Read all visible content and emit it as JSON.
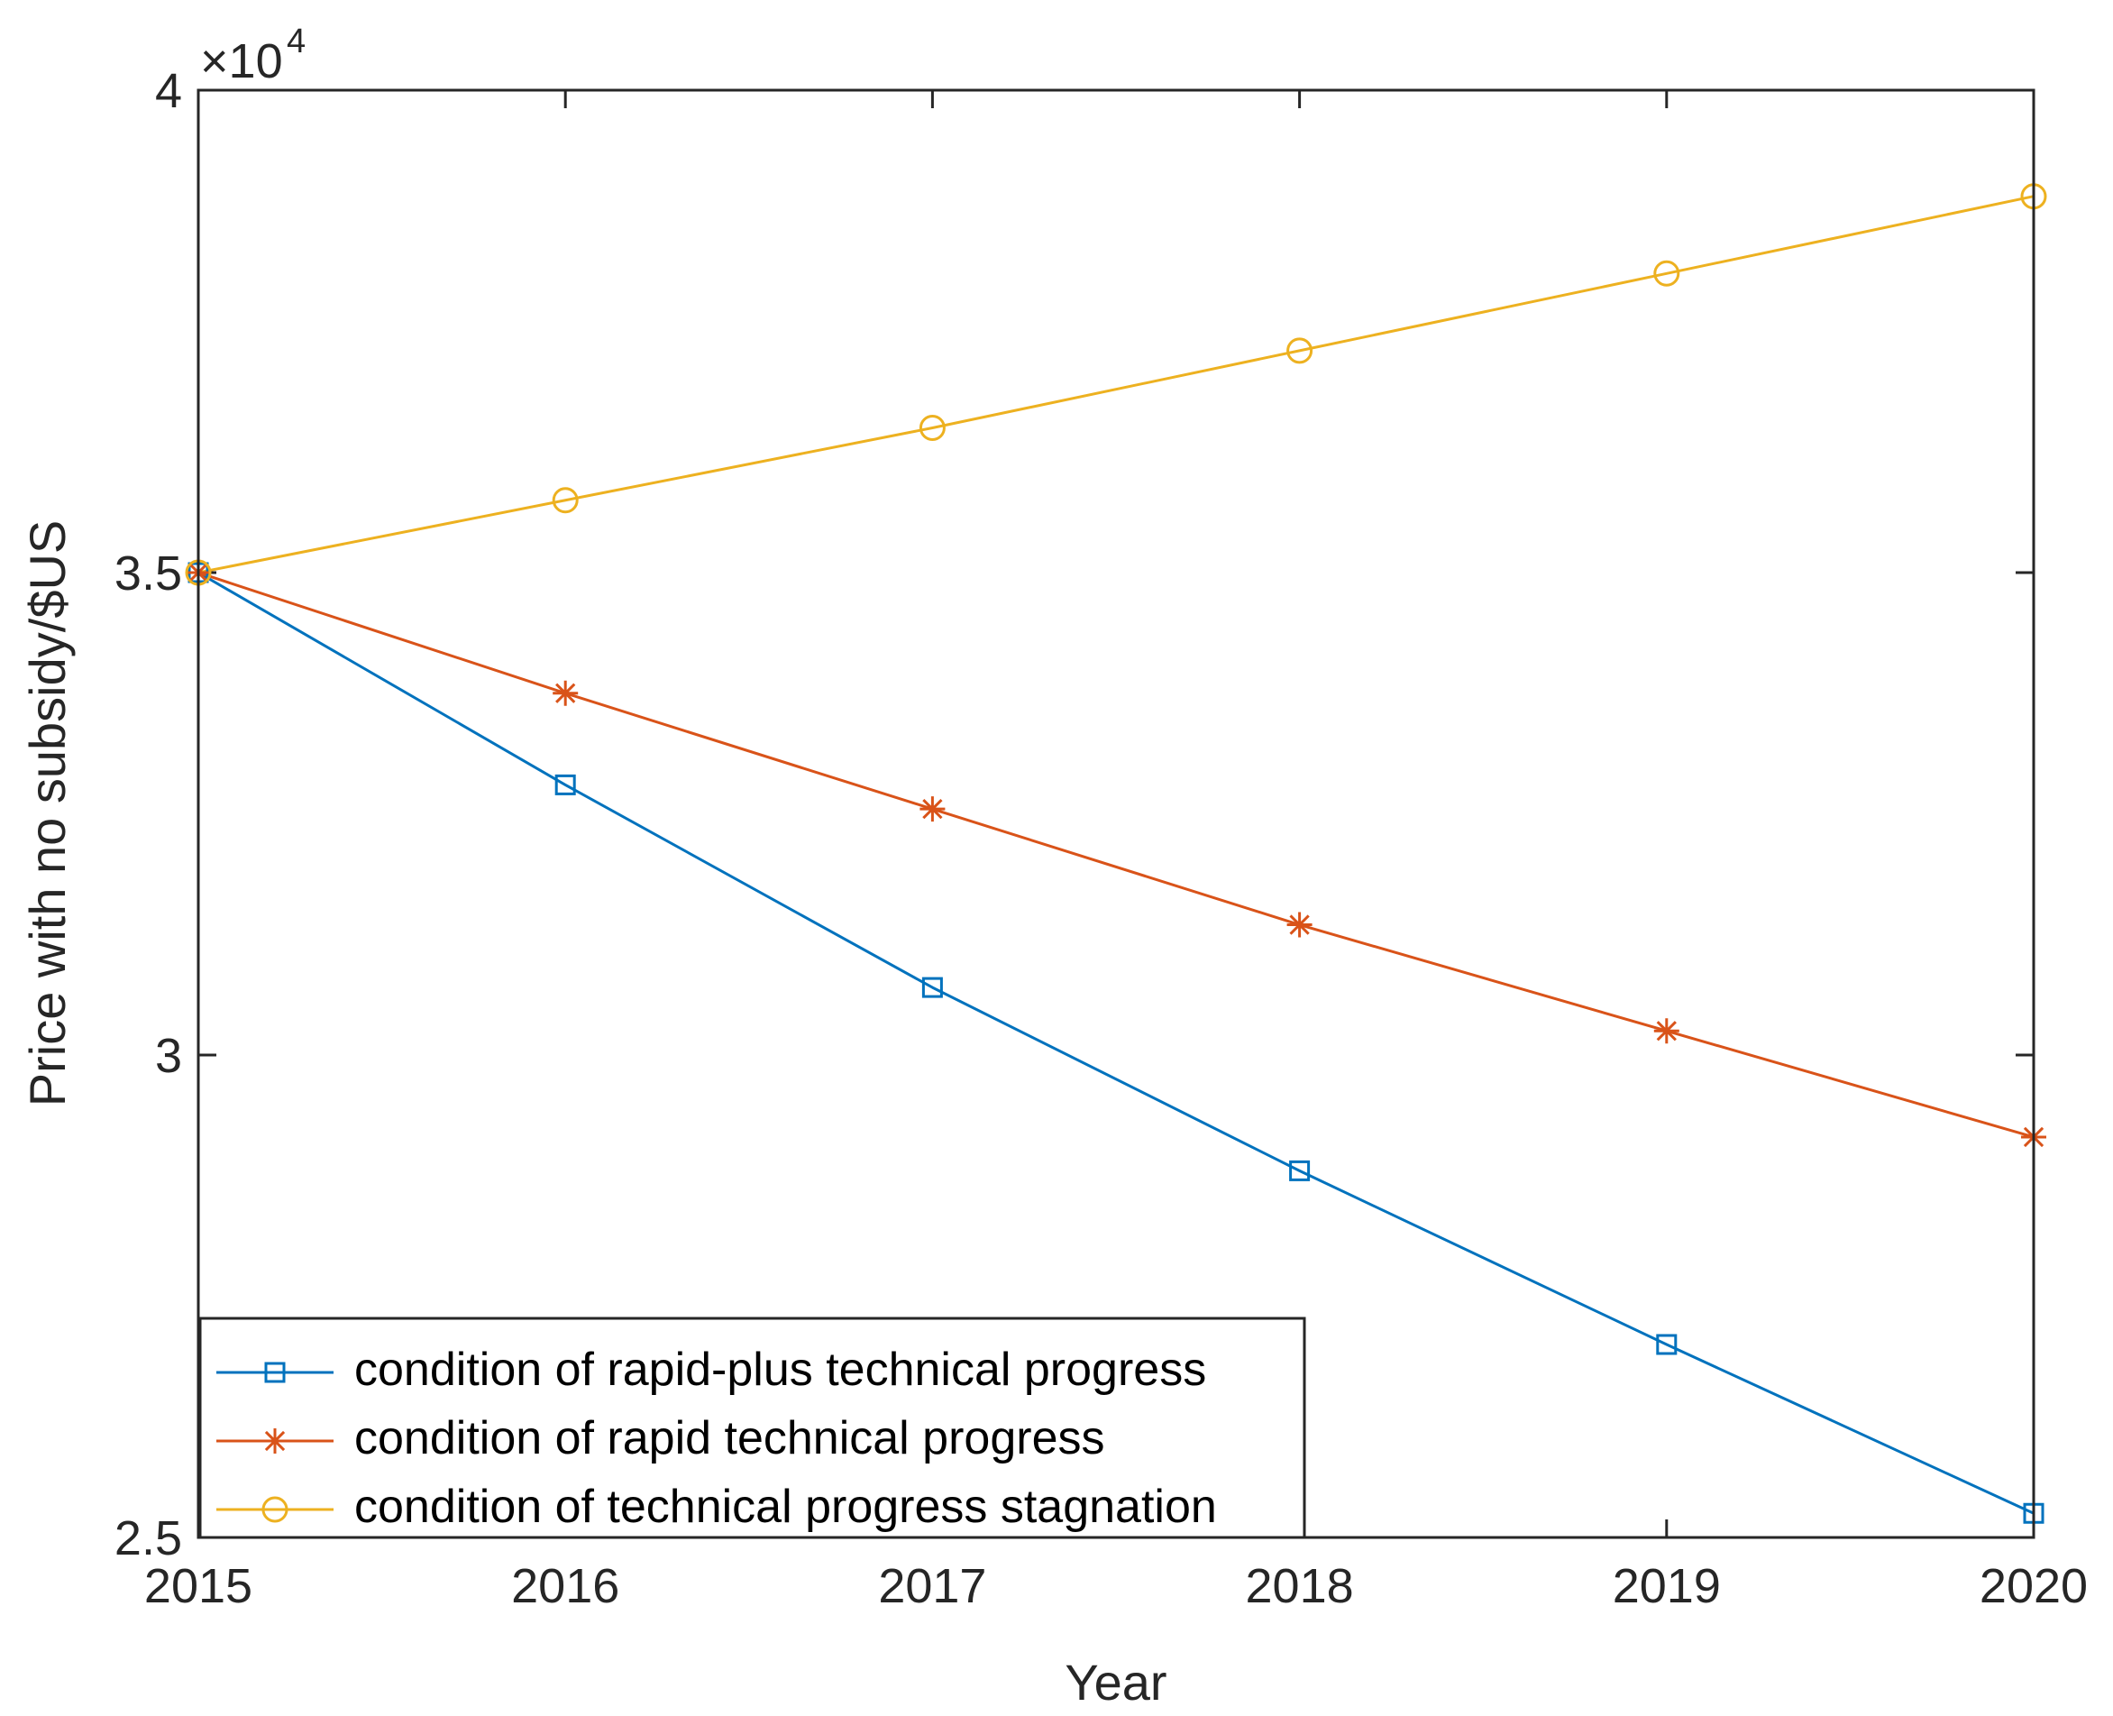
{
  "chart_data": {
    "type": "line",
    "title": "",
    "xlabel": "Year",
    "ylabel": "Price with no subsidy/$US",
    "y_exponent_label": "×10",
    "y_exponent_power": "4",
    "x": [
      2015,
      2016,
      2017,
      2018,
      2019,
      2020
    ],
    "xlim": [
      2015,
      2020
    ],
    "ylim": [
      25000,
      40000
    ],
    "x_tick_labels": [
      "2015",
      "2016",
      "2017",
      "2018",
      "2019",
      "2020"
    ],
    "y_ticks": [
      25000,
      30000,
      35000,
      40000
    ],
    "y_tick_labels": [
      "2.5",
      "3",
      "3.5",
      "4"
    ],
    "grid": false,
    "box": true,
    "legend_location": "bottom-left",
    "series": [
      {
        "name": "condition of rapid-plus technical progress",
        "color": "#0072BD",
        "marker": "square",
        "values": [
          35000,
          32800,
          30700,
          28800,
          27000,
          25250
        ]
      },
      {
        "name": "condition of rapid technical progress",
        "color": "#D95319",
        "marker": "star",
        "values": [
          35000,
          33750,
          32550,
          31350,
          30250,
          29150
        ]
      },
      {
        "name": "condition of technical progress stagnation",
        "color": "#EDB120",
        "marker": "circle",
        "values": [
          35000,
          35750,
          36500,
          37300,
          38100,
          38900
        ]
      }
    ]
  }
}
